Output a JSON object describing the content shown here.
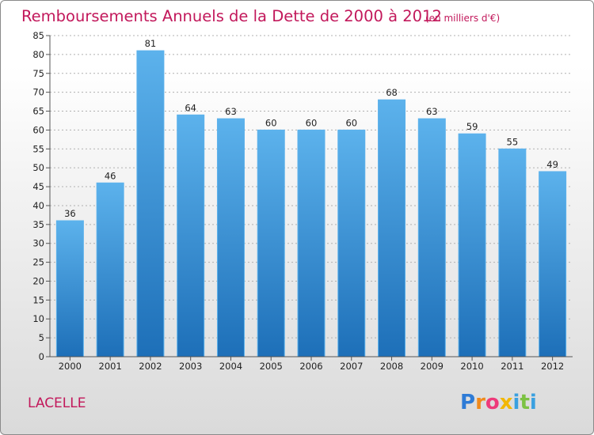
{
  "title": "Remboursements Annuels de la Dette de 2000 à 2012",
  "subtitle": "(en milliers d'€)",
  "place": "LACELLE",
  "logo": {
    "letters": [
      "P",
      "r",
      "o",
      "x",
      "i",
      "t",
      "i"
    ],
    "colors": [
      "#2e7bd6",
      "#f08a1c",
      "#ee3a7a",
      "#f2b705",
      "#3aa0e0",
      "#7cc243",
      "#3aa0e0"
    ]
  },
  "colors": {
    "bar": "#3d93dc",
    "bar_light": "#5cb2ec",
    "bar_dark": "#1d6fb8",
    "accent": "#c2185b"
  },
  "chart_data": {
    "type": "bar",
    "categories": [
      "2000",
      "2001",
      "2002",
      "2003",
      "2004",
      "2005",
      "2006",
      "2007",
      "2008",
      "2009",
      "2010",
      "2011",
      "2012"
    ],
    "values": [
      36,
      46,
      81,
      64,
      63,
      60,
      60,
      60,
      68,
      63,
      59,
      55,
      49
    ],
    "ylim": [
      0,
      85
    ],
    "yticks": [
      0,
      5,
      10,
      15,
      20,
      25,
      30,
      35,
      40,
      45,
      50,
      55,
      60,
      65,
      70,
      75,
      80,
      85
    ],
    "grid": true,
    "data_labels": true
  }
}
